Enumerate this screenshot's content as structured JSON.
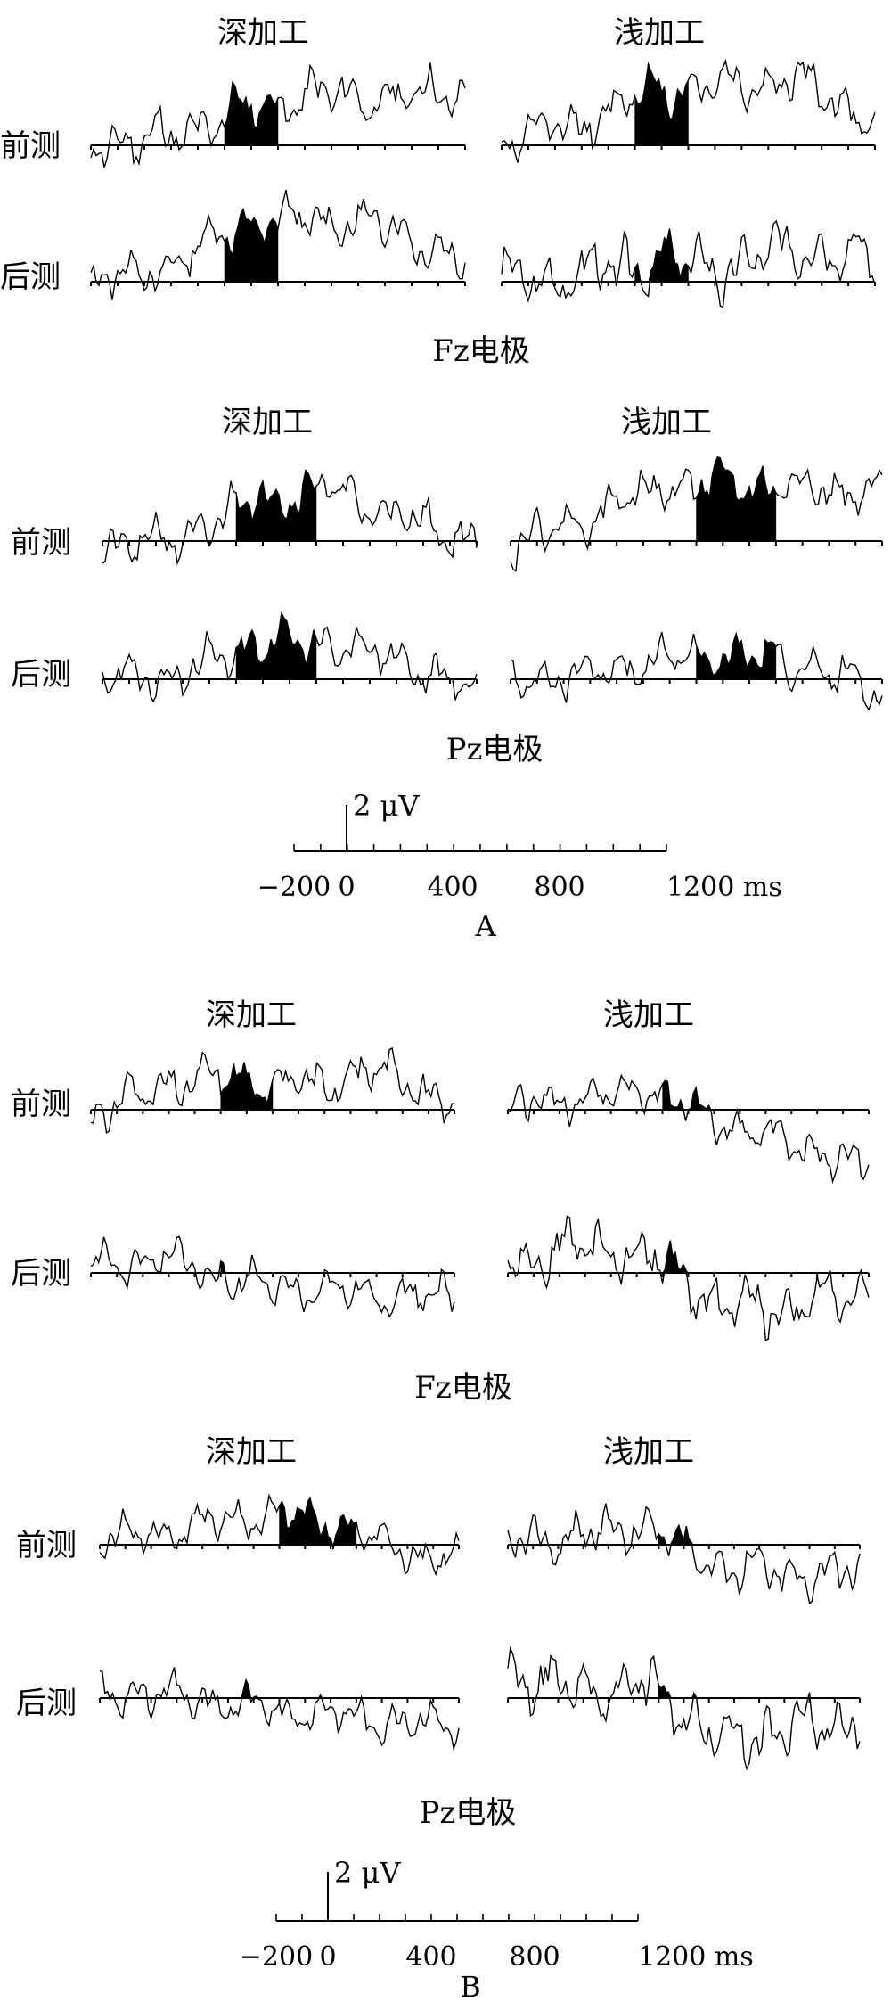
{
  "figure": {
    "column_labels": [
      "深加工",
      "浅加工"
    ],
    "row_labels": [
      "前测",
      "后测"
    ],
    "electrode_labels": [
      "Fz电极",
      "Pz电极"
    ]
  },
  "scale_bars": [
    {
      "amplitude_label": "2 μV",
      "x_tick_labels": [
        "−200",
        "0",
        "400",
        "800",
        "1200 ms"
      ]
    },
    {
      "amplitude_label": "2 μV",
      "x_tick_labels": [
        "−200",
        "0",
        "400",
        "800",
        "1200 ms"
      ]
    }
  ],
  "panel_labels": [
    "A",
    "B"
  ],
  "chart_data": {
    "type": "line",
    "x_unit": "ms",
    "y_unit": "μV",
    "xlim": [
      -200,
      1200
    ],
    "scale_bar_uV": 2,
    "shading": "significant time windows filled in black",
    "panels": [
      {
        "label": "A",
        "electrode": "Fz电极",
        "condition": "深加工",
        "test": "前测",
        "window_ms": [
          300,
          500
        ],
        "seed": 11,
        "trend": [
          0.1,
          0.3,
          1.5,
          2.2,
          2.0,
          2.4
        ],
        "amp": 1.1
      },
      {
        "label": "A",
        "electrode": "Fz电极",
        "condition": "浅加工",
        "test": "前测",
        "window_ms": [
          300,
          500
        ],
        "seed": 12,
        "trend": [
          0.3,
          0.8,
          2.4,
          2.6,
          2.8,
          1.0
        ],
        "amp": 1.0
      },
      {
        "label": "A",
        "electrode": "Fz电极",
        "condition": "深加工",
        "test": "后测",
        "window_ms": [
          300,
          500
        ],
        "seed": 13,
        "trend": [
          0.0,
          0.6,
          2.5,
          2.7,
          2.4,
          0.8
        ],
        "amp": 1.0
      },
      {
        "label": "A",
        "electrode": "Fz电极",
        "condition": "浅加工",
        "test": "后测",
        "window_ms": [
          300,
          500
        ],
        "seed": 14,
        "trend": [
          0.0,
          0.2,
          1.0,
          0.5,
          1.6,
          0.8
        ],
        "amp": 1.3
      },
      {
        "label": "A",
        "electrode": "Pz电极",
        "condition": "深加工",
        "test": "前测",
        "window_ms": [
          300,
          600
        ],
        "seed": 21,
        "trend": [
          -0.2,
          0.0,
          1.8,
          2.3,
          1.0,
          0.0
        ],
        "amp": 1.0
      },
      {
        "label": "A",
        "electrode": "Pz电极",
        "condition": "浅加工",
        "test": "前测",
        "window_ms": [
          500,
          800
        ],
        "seed": 22,
        "trend": [
          -0.2,
          1.0,
          2.4,
          2.5,
          2.3,
          2.0
        ],
        "amp": 1.0
      },
      {
        "label": "A",
        "electrode": "Pz电极",
        "condition": "深加工",
        "test": "后测",
        "window_ms": [
          300,
          600
        ],
        "seed": 23,
        "trend": [
          0.0,
          0.1,
          1.5,
          1.6,
          0.8,
          -0.6
        ],
        "amp": 1.0
      },
      {
        "label": "A",
        "electrode": "Pz电极",
        "condition": "浅加工",
        "test": "后测",
        "window_ms": [
          500,
          800
        ],
        "seed": 24,
        "trend": [
          0.0,
          0.2,
          0.8,
          1.1,
          0.6,
          -0.6
        ],
        "amp": 1.0
      },
      {
        "label": "B",
        "electrode": "Fz电极",
        "condition": "深加工",
        "test": "前测",
        "window_ms": [
          300,
          500
        ],
        "seed": 31,
        "trend": [
          -0.3,
          1.1,
          1.4,
          1.0,
          1.8,
          0.2
        ],
        "amp": 1.0
      },
      {
        "label": "B",
        "electrode": "Fz电极",
        "condition": "浅加工",
        "test": "前测",
        "window_ms": [
          400,
          600
        ],
        "seed": 32,
        "trend": [
          0.0,
          0.6,
          0.9,
          -0.6,
          -1.5,
          -2.4
        ],
        "amp": 0.9
      },
      {
        "label": "B",
        "electrode": "Fz电极",
        "condition": "深加工",
        "test": "后测",
        "window_ms": [
          300,
          400
        ],
        "seed": 33,
        "trend": [
          0.3,
          0.6,
          -0.3,
          -0.8,
          -0.9,
          -1.0
        ],
        "amp": 0.9
      },
      {
        "label": "B",
        "electrode": "Fz电极",
        "condition": "浅加工",
        "test": "后测",
        "window_ms": [
          400,
          600
        ],
        "seed": 34,
        "trend": [
          0.5,
          1.2,
          0.7,
          -1.5,
          -1.4,
          -0.9
        ],
        "amp": 1.2
      },
      {
        "label": "B",
        "electrode": "Pz电极",
        "condition": "深加工",
        "test": "前测",
        "window_ms": [
          500,
          800
        ],
        "seed": 41,
        "trend": [
          0.2,
          0.6,
          1.2,
          1.2,
          0.0,
          -0.8
        ],
        "amp": 0.9
      },
      {
        "label": "B",
        "electrode": "Pz电极",
        "condition": "浅加工",
        "test": "前测",
        "window_ms": [
          400,
          600
        ],
        "seed": 42,
        "trend": [
          0.0,
          0.4,
          0.8,
          -0.9,
          -1.3,
          -1.2
        ],
        "amp": 1.0
      },
      {
        "label": "B",
        "electrode": "Pz电极",
        "condition": "深加工",
        "test": "后测",
        "window_ms": [
          300,
          800
        ],
        "seed": 43,
        "trend": [
          0.2,
          0.2,
          -0.4,
          -0.6,
          -1.0,
          -1.1
        ],
        "amp": 0.9
      },
      {
        "label": "B",
        "electrode": "Pz电极",
        "condition": "浅加工",
        "test": "后测",
        "window_ms": [
          400,
          600
        ],
        "seed": 44,
        "trend": [
          1.0,
          0.3,
          0.6,
          -1.7,
          -1.4,
          -1.0
        ],
        "amp": 1.3
      }
    ]
  }
}
